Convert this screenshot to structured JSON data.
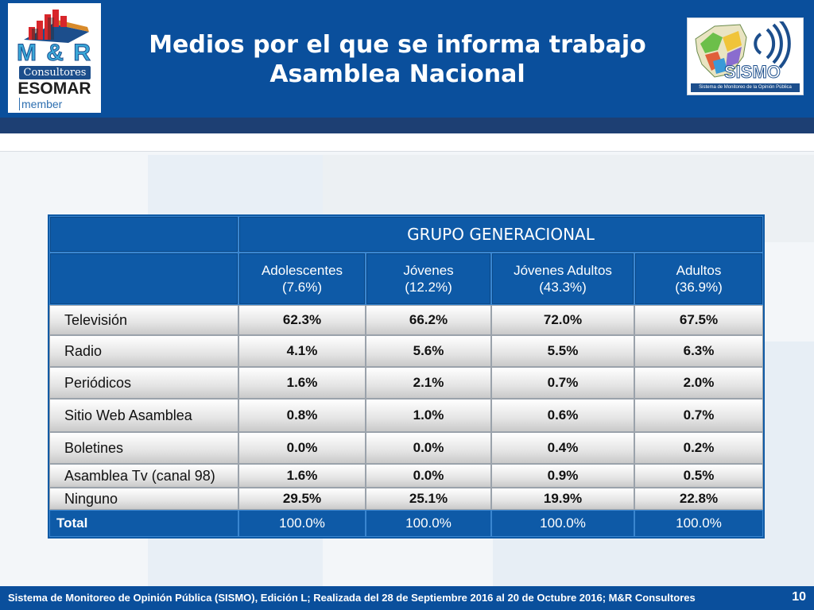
{
  "header": {
    "title_line1": "Medios por el que se informa trabajo",
    "title_line2": "Asamblea Nacional",
    "left_logo": {
      "brand": "M & R",
      "consultores": "Consultores",
      "esomar": "ESOMAR",
      "member": "member"
    },
    "right_logo": {
      "brand": "SISMO",
      "subtitle": "Sistema de Monitoreo de la Opinión Pública"
    }
  },
  "table": {
    "group_header": "GRUPO GENERACIONAL",
    "columns": [
      {
        "name": "Adolescentes",
        "share": "(7.6%)"
      },
      {
        "name": "Jóvenes",
        "share": "(12.2%)"
      },
      {
        "name": "Jóvenes Adultos",
        "share": "(43.3%)"
      },
      {
        "name": "Adultos",
        "share": "(36.9%)"
      }
    ],
    "rows": [
      {
        "label": "Televisión",
        "values": [
          "62.3%",
          "66.2%",
          "72.0%",
          "67.5%"
        ]
      },
      {
        "label": "Radio",
        "values": [
          "4.1%",
          "5.6%",
          "5.5%",
          "6.3%"
        ]
      },
      {
        "label": "Periódicos",
        "values": [
          "1.6%",
          "2.1%",
          "0.7%",
          "2.0%"
        ]
      },
      {
        "label": "Sitio Web Asamblea",
        "values": [
          "0.8%",
          "1.0%",
          "0.6%",
          "0.7%"
        ]
      },
      {
        "label": "Boletines",
        "values": [
          "0.0%",
          "0.0%",
          "0.4%",
          "0.2%"
        ]
      },
      {
        "label": "Asamblea Tv (canal 98)",
        "values": [
          "1.6%",
          "0.0%",
          "0.9%",
          "0.5%"
        ]
      },
      {
        "label": "Ninguno",
        "values": [
          "29.5%",
          "25.1%",
          "19.9%",
          "22.8%"
        ]
      }
    ],
    "total": {
      "label": "Total",
      "values": [
        "100.0%",
        "100.0%",
        "100.0%",
        "100.0%"
      ]
    }
  },
  "footer": {
    "source": "Sistema de Monitoreo de Opinión Pública (SISMO), Edición L; Realizada del 28 de Septiembre 2016 al 20 de Octubre 2016; M&R Consultores",
    "page_number": "10"
  }
}
